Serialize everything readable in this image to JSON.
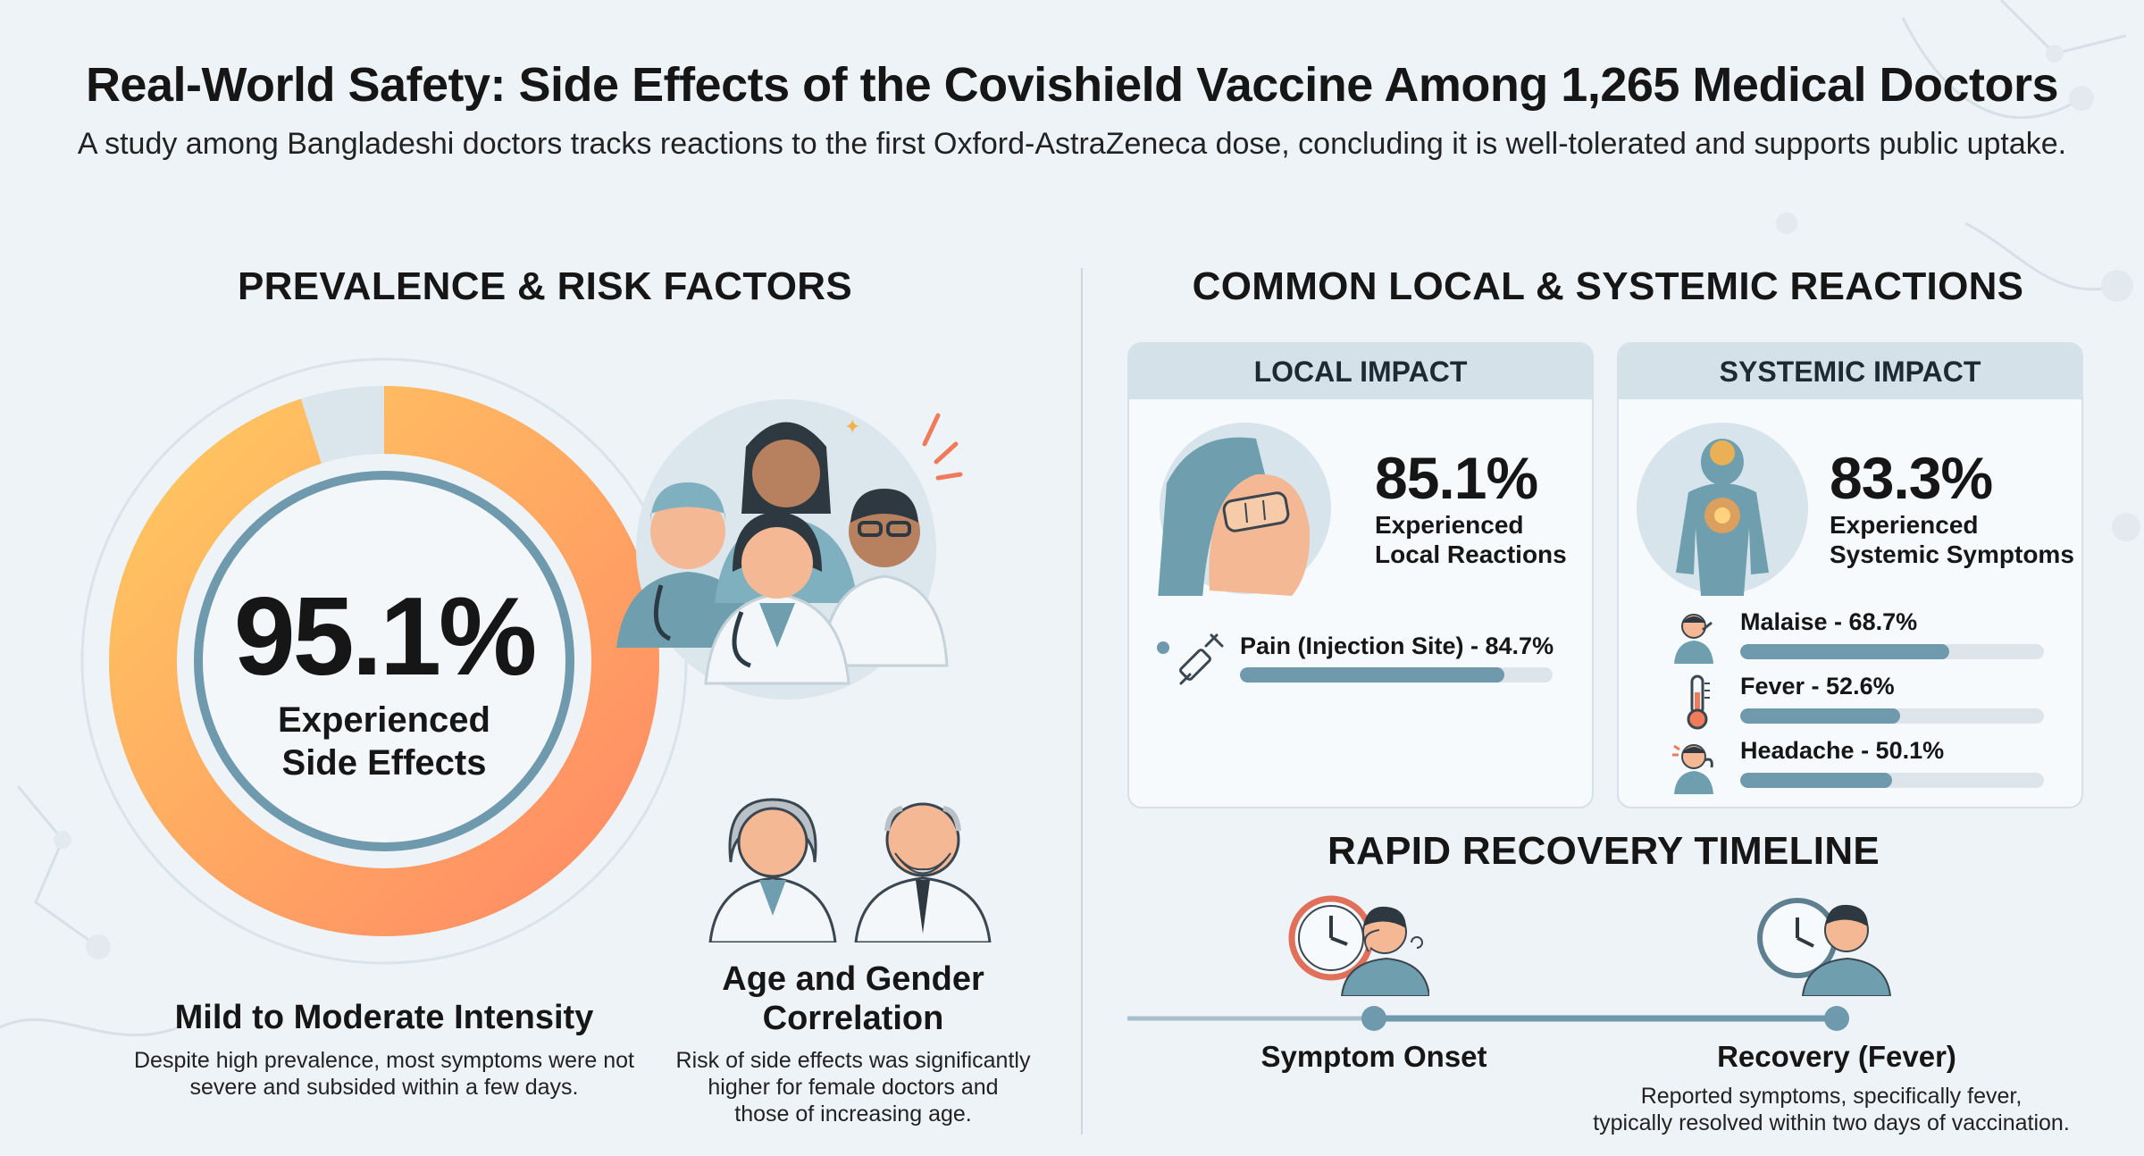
{
  "header": {
    "title": "Real-World Safety: Side Effects of the Covishield Vaccine Among 1,265 Medical Doctors",
    "subtitle": "A study among Bangladeshi doctors tracks reactions to the first Oxford-AstraZeneca dose, concluding it is well-tolerated and supports public uptake."
  },
  "left": {
    "heading": "PREVALENCE & RISK FACTORS",
    "main_stat": {
      "value": "95.1%",
      "label_line1": "Experienced",
      "label_line2": "Side Effects",
      "fraction": 0.951
    },
    "intensity": {
      "title": "Mild to Moderate Intensity",
      "line1": "Despite high prevalence, most symptoms were not",
      "line2": "severe and subsided within a few days."
    },
    "correlation": {
      "title_line1": "Age and Gender",
      "title_line2": "Correlation",
      "line1": "Risk of side effects was significantly",
      "line2": "higher for female doctors and",
      "line3": "those of increasing age."
    }
  },
  "right": {
    "heading": "COMMON LOCAL & SYSTEMIC REACTIONS",
    "local": {
      "head": "LOCAL IMPACT",
      "value": "85.1%",
      "label_line1": "Experienced",
      "label_line2": "Local Reactions",
      "items": [
        {
          "label": "Pain (Injection Site) - 84.7%",
          "fraction": 0.847
        }
      ]
    },
    "systemic": {
      "head": "SYSTEMIC IMPACT",
      "value": "83.3%",
      "label_line1": "Experienced",
      "label_line2": "Systemic Symptoms",
      "items": [
        {
          "label": "Malaise - 68.7%",
          "fraction": 0.687
        },
        {
          "label": "Fever - 52.6%",
          "fraction": 0.526
        },
        {
          "label": "Headache - 50.1%",
          "fraction": 0.501
        }
      ]
    },
    "timeline": {
      "heading": "RAPID RECOVERY TIMELINE",
      "onset": "Symptom Onset",
      "recovery": "Recovery (Fever)",
      "line1": "Reported symptoms, specifically fever,",
      "line2": "typically resolved within two days of vaccination."
    }
  },
  "colors": {
    "donut_start": "#ff8a65",
    "donut_end": "#ffc860",
    "teal": "#6f99ac",
    "skin": "#f4b894",
    "scrub": "#6f9fae"
  }
}
